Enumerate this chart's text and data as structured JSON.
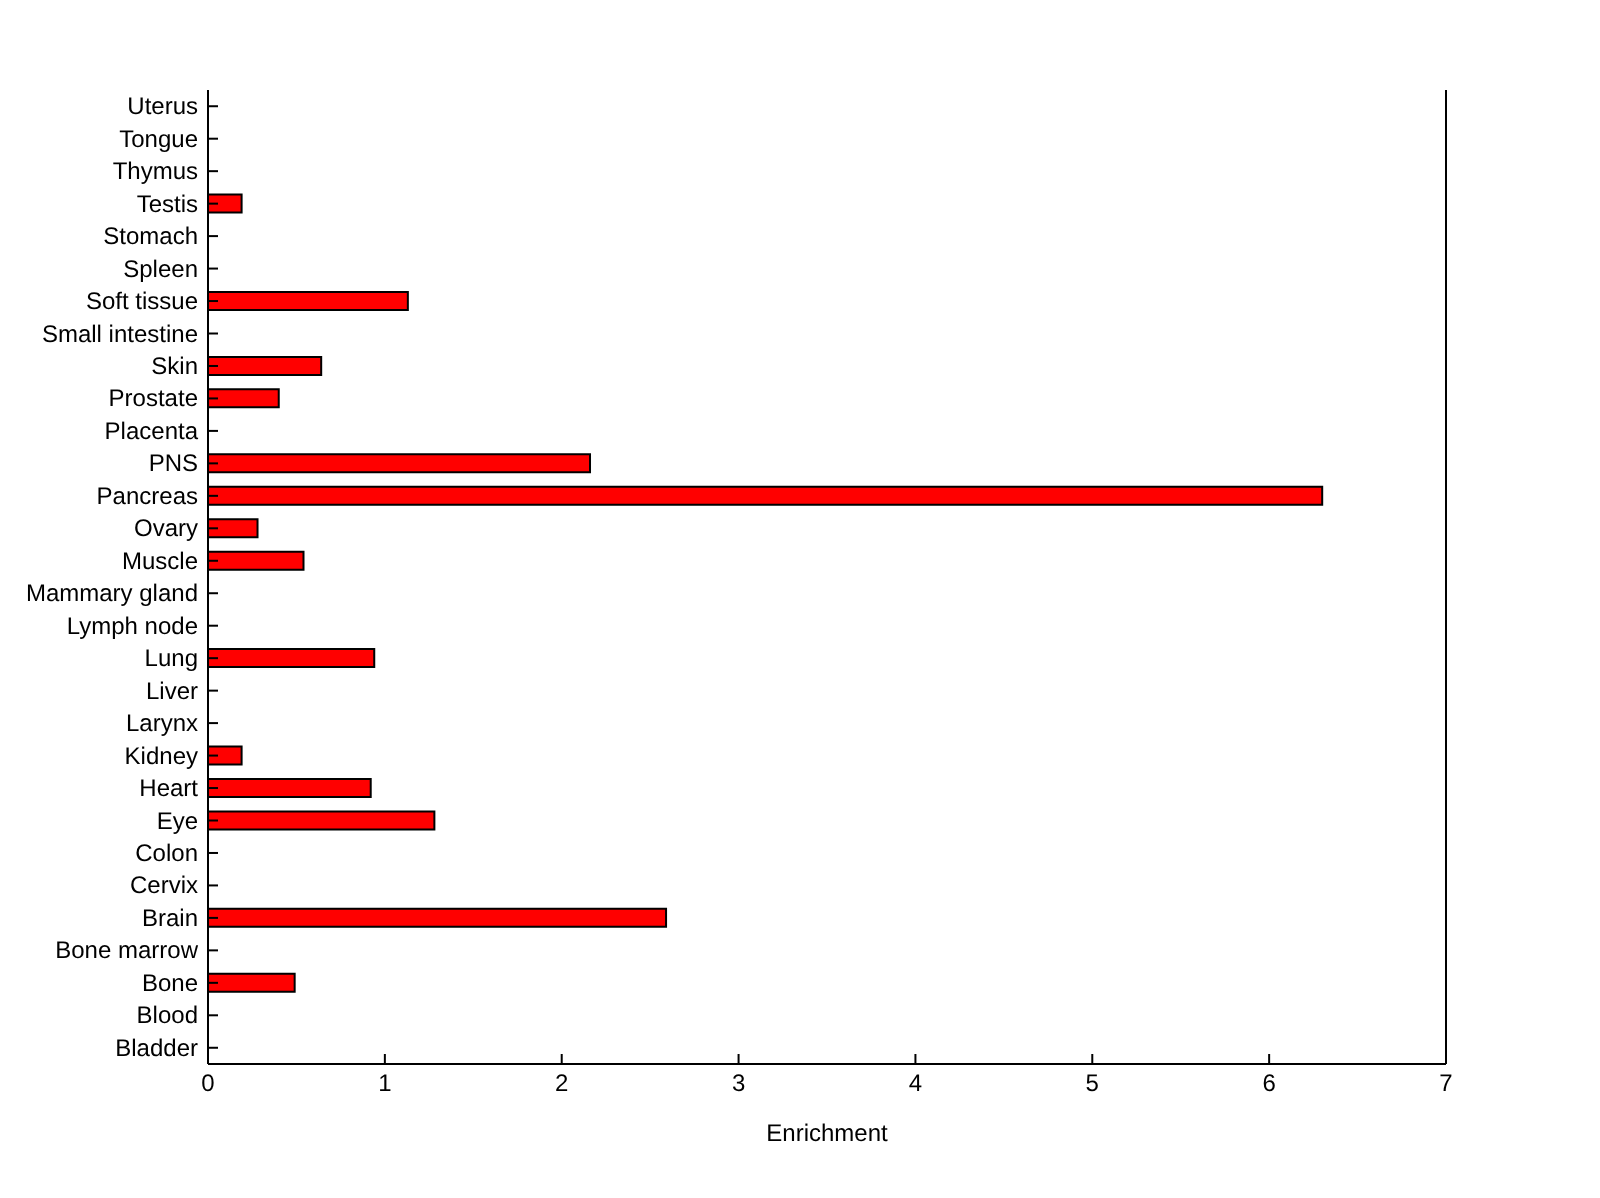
{
  "chart_data": {
    "type": "bar",
    "orientation": "horizontal",
    "xlabel": "Enrichment",
    "categories": [
      "Uterus",
      "Tongue",
      "Thymus",
      "Testis",
      "Stomach",
      "Spleen",
      "Soft tissue",
      "Small intestine",
      "Skin",
      "Prostate",
      "Placenta",
      "PNS",
      "Pancreas",
      "Ovary",
      "Muscle",
      "Mammary gland",
      "Lymph node",
      "Lung",
      "Liver",
      "Larynx",
      "Kidney",
      "Heart",
      "Eye",
      "Colon",
      "Cervix",
      "Brain",
      "Bone marrow",
      "Bone",
      "Blood",
      "Bladder"
    ],
    "values": [
      0,
      0,
      0,
      0.19,
      0,
      0,
      1.13,
      0,
      0.64,
      0.4,
      0,
      2.16,
      6.3,
      0.28,
      0.54,
      0,
      0,
      0.94,
      0,
      0,
      0.19,
      0.92,
      1.28,
      0,
      0,
      2.59,
      0,
      0.49,
      0,
      0
    ],
    "color": "#ff0000",
    "xlim": [
      0,
      7
    ],
    "xticks": [
      0,
      1,
      2,
      3,
      4,
      5,
      6,
      7
    ]
  }
}
